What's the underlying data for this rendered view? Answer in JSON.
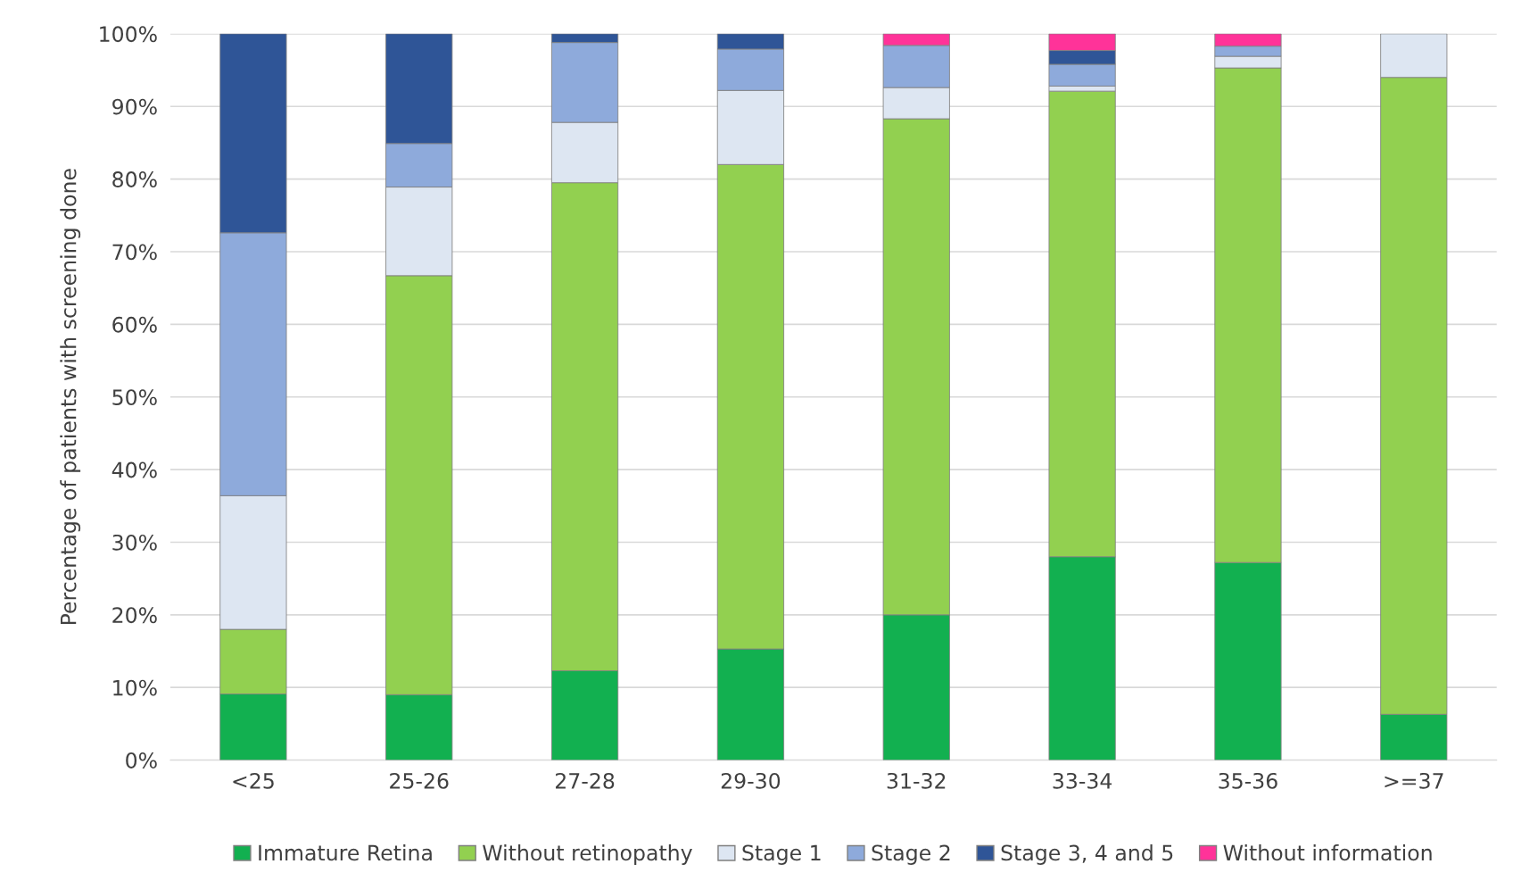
{
  "chart_data": {
    "type": "bar",
    "stacked": true,
    "ylabel": "Percentage of patients with screening done",
    "categories": [
      "<25",
      "25-26",
      "27-28",
      "29-30",
      "31-32",
      "33-34",
      "35-36",
      ">=37"
    ],
    "series": [
      {
        "name": "Immature Retina",
        "color": "#12b050",
        "values": [
          9.1,
          9.0,
          12.3,
          15.3,
          20.0,
          28.0,
          27.2,
          6.3
        ]
      },
      {
        "name": "Without retinopathy",
        "color": "#92d050",
        "values": [
          8.9,
          57.7,
          67.2,
          66.7,
          68.3,
          64.1,
          68.1,
          87.7
        ]
      },
      {
        "name": "Stage 1",
        "color": "#dde6f2",
        "values": [
          18.4,
          12.2,
          8.3,
          10.2,
          4.3,
          0.7,
          1.6,
          6.0
        ]
      },
      {
        "name": "Stage 2",
        "color": "#8eaadb",
        "values": [
          36.2,
          6.0,
          11.0,
          5.7,
          5.8,
          3.0,
          1.4,
          0
        ]
      },
      {
        "name": "Stage 3, 4 and 5",
        "color": "#2f5597",
        "values": [
          27.4,
          15.1,
          1.2,
          2.1,
          0,
          1.9,
          0,
          0
        ]
      },
      {
        "name": "Without information",
        "color": "#ff3399",
        "values": [
          0,
          0,
          0,
          0,
          1.6,
          2.3,
          1.7,
          0
        ]
      }
    ],
    "ylim": [
      0,
      100
    ],
    "yticks": [
      {
        "value": 0,
        "label": "0%"
      },
      {
        "value": 10,
        "label": "10%"
      },
      {
        "value": 20,
        "label": "20%"
      },
      {
        "value": 30,
        "label": "30%"
      },
      {
        "value": 40,
        "label": "40%"
      },
      {
        "value": 50,
        "label": "50%"
      },
      {
        "value": 60,
        "label": "60%"
      },
      {
        "value": 70,
        "label": "70%"
      },
      {
        "value": 80,
        "label": "80%"
      },
      {
        "value": 90,
        "label": "90%"
      },
      {
        "value": 100,
        "label": "100%"
      }
    ],
    "grid": "y",
    "legend": "bottom"
  }
}
